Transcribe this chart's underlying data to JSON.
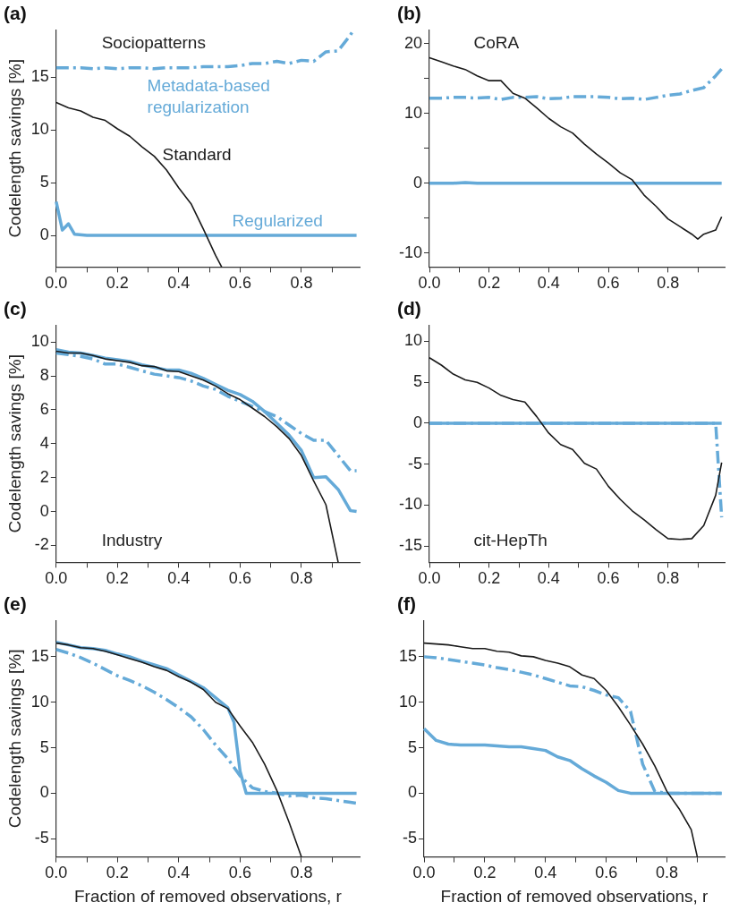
{
  "chart_data": [
    {
      "type": "line",
      "title": "(a)",
      "ylabel": "Codelength savings [%]",
      "annotations": [
        "Sociopatterns"
      ],
      "legend": false,
      "xlim": [
        0,
        0.99
      ],
      "ylim": [
        -3,
        19.5
      ],
      "xticks": [
        {
          "value": 0,
          "label": "0.0"
        },
        {
          "value": 0.1,
          "label": null
        },
        {
          "value": 0.2,
          "label": "0.2"
        },
        {
          "value": 0.3,
          "label": null
        },
        {
          "value": 0.4,
          "label": "0.4"
        },
        {
          "value": 0.5,
          "label": null
        },
        {
          "value": 0.6,
          "label": "0.6"
        },
        {
          "value": 0.7,
          "label": null
        },
        {
          "value": 0.8,
          "label": "0.8"
        },
        {
          "value": 0.9,
          "label": null
        }
      ],
      "yticks": [
        0,
        5,
        10,
        15
      ],
      "series": [
        {
          "name": "Standard",
          "color": "#1a1a1a",
          "line_style": "solid",
          "x": [
            0,
            0.04,
            0.08,
            0.12,
            0.16,
            0.2,
            0.24,
            0.28,
            0.32,
            0.36,
            0.4,
            0.44,
            0.48,
            0.52,
            0.54
          ],
          "values": [
            12.6,
            12.1,
            11.8,
            11.2,
            10.9,
            10.1,
            9.4,
            8.4,
            7.5,
            6.2,
            4.5,
            3.0,
            0.6,
            -1.9,
            -3
          ]
        },
        {
          "name": "Regularized",
          "color": "#65aad8",
          "line_style": "solid",
          "x": [
            0,
            0.02,
            0.04,
            0.06,
            0.1,
            0.98
          ],
          "values": [
            3.2,
            0.5,
            1.1,
            0.1,
            0,
            0
          ]
        },
        {
          "name": "Metadata-based regularization",
          "color": "#65aad8",
          "line_style": "dashed",
          "x": [
            0,
            0.04,
            0.08,
            0.12,
            0.16,
            0.2,
            0.24,
            0.28,
            0.32,
            0.36,
            0.4,
            0.44,
            0.48,
            0.52,
            0.56,
            0.6,
            0.64,
            0.68,
            0.72,
            0.76,
            0.8,
            0.84,
            0.88,
            0.92,
            0.96,
            0.97
          ],
          "values": [
            15.9,
            15.9,
            15.9,
            15.8,
            15.9,
            15.8,
            15.9,
            15.9,
            15.8,
            15.9,
            15.9,
            15.9,
            16.0,
            16.0,
            16.0,
            16.1,
            16.3,
            16.3,
            16.5,
            16.3,
            16.6,
            16.5,
            17.4,
            17.5,
            19.0,
            19.5
          ]
        }
      ]
    },
    {
      "type": "line",
      "title": "(b)",
      "annotations": [
        "CoRA"
      ],
      "legend": false,
      "xlim": [
        0,
        0.99
      ],
      "ylim": [
        -12,
        22
      ],
      "xticks": [
        {
          "value": 0,
          "label": "0.0"
        },
        {
          "value": 0.1,
          "label": null
        },
        {
          "value": 0.2,
          "label": "0.2"
        },
        {
          "value": 0.3,
          "label": null
        },
        {
          "value": 0.4,
          "label": "0.4"
        },
        {
          "value": 0.5,
          "label": null
        },
        {
          "value": 0.6,
          "label": "0.6"
        },
        {
          "value": 0.7,
          "label": null
        },
        {
          "value": 0.8,
          "label": "0.8"
        },
        {
          "value": 0.9,
          "label": null
        }
      ],
      "yticks": [
        -10,
        {
          "value": -5,
          "label": null
        },
        0,
        {
          "value": 5,
          "label": null
        },
        10,
        {
          "value": 15,
          "label": null
        },
        20
      ],
      "x": [
        0,
        0.04,
        0.08,
        0.12,
        0.16,
        0.2,
        0.24,
        0.28,
        0.32,
        0.36,
        0.4,
        0.44,
        0.48,
        0.52,
        0.56,
        0.6,
        0.64,
        0.68,
        0.72,
        0.76,
        0.8,
        0.84,
        0.88,
        0.92,
        0.96,
        0.98
      ],
      "series": [
        {
          "color": "#1a1a1a",
          "line_style": "solid",
          "x": [
            0,
            0.04,
            0.08,
            0.12,
            0.16,
            0.2,
            0.24,
            0.28,
            0.32,
            0.36,
            0.4,
            0.44,
            0.48,
            0.52,
            0.56,
            0.6,
            0.64,
            0.68,
            0.72,
            0.76,
            0.8,
            0.84,
            0.88,
            0.9,
            0.92,
            0.96,
            0.98
          ],
          "values": [
            18.0,
            17.4,
            16.8,
            16.3,
            15.4,
            14.7,
            14.7,
            12.9,
            12.2,
            10.8,
            9.3,
            8.1,
            7.2,
            5.6,
            4.2,
            2.9,
            1.5,
            0.5,
            -1.7,
            -3.3,
            -5.1,
            -6.2,
            -7.3,
            -8.0,
            -7.3,
            -6.7,
            -4.8
          ]
        },
        {
          "color": "#65aad8",
          "line_style": "solid",
          "values": [
            0,
            0,
            0,
            0.1,
            0,
            0,
            0,
            0,
            0,
            0,
            0,
            0,
            0,
            0,
            0,
            0,
            0,
            0,
            0,
            0,
            0,
            0,
            0,
            0,
            0,
            0
          ]
        },
        {
          "color": "#65aad8",
          "line_style": "dashed",
          "values": [
            12.2,
            12.2,
            12.3,
            12.3,
            12.2,
            12.3,
            12.0,
            12.3,
            12.3,
            12.4,
            12.1,
            12.2,
            12.4,
            12.4,
            12.4,
            12.3,
            12.1,
            12.2,
            12.0,
            12.3,
            12.6,
            12.8,
            13.3,
            13.7,
            15.4,
            16.4
          ]
        }
      ]
    },
    {
      "type": "line",
      "title": "(c)",
      "ylabel": "Codelength savings [%]",
      "annotations": [
        "Industry"
      ],
      "legend": false,
      "xlim": [
        0,
        0.99
      ],
      "ylim": [
        -3,
        11
      ],
      "xticks": [
        {
          "value": 0,
          "label": "0.0"
        },
        {
          "value": 0.1,
          "label": null
        },
        {
          "value": 0.2,
          "label": "0.2"
        },
        {
          "value": 0.3,
          "label": null
        },
        {
          "value": 0.4,
          "label": "0.4"
        },
        {
          "value": 0.5,
          "label": null
        },
        {
          "value": 0.6,
          "label": "0.6"
        },
        {
          "value": 0.7,
          "label": null
        },
        {
          "value": 0.8,
          "label": "0.8"
        },
        {
          "value": 0.9,
          "label": null
        }
      ],
      "yticks": [
        -2,
        0,
        2,
        4,
        6,
        8,
        10
      ],
      "x": [
        0,
        0.04,
        0.08,
        0.12,
        0.16,
        0.2,
        0.24,
        0.28,
        0.32,
        0.36,
        0.4,
        0.44,
        0.48,
        0.52,
        0.56,
        0.6,
        0.64,
        0.68,
        0.72,
        0.76,
        0.8,
        0.84,
        0.88,
        0.92,
        0.96,
        0.98
      ],
      "series": [
        {
          "color": "#1a1a1a",
          "line_style": "solid",
          "x": [
            0,
            0.04,
            0.08,
            0.12,
            0.16,
            0.2,
            0.24,
            0.28,
            0.32,
            0.36,
            0.4,
            0.44,
            0.48,
            0.52,
            0.56,
            0.6,
            0.64,
            0.68,
            0.72,
            0.76,
            0.8,
            0.84,
            0.88,
            0.92
          ],
          "values": [
            9.45,
            9.35,
            9.35,
            9.2,
            9.0,
            8.9,
            8.8,
            8.6,
            8.55,
            8.3,
            8.25,
            8.0,
            7.75,
            7.4,
            6.95,
            6.6,
            6.1,
            5.6,
            5.0,
            4.3,
            3.3,
            1.8,
            0.4,
            -3.0
          ]
        },
        {
          "color": "#65aad8",
          "line_style": "solid",
          "values": [
            9.55,
            9.4,
            9.35,
            9.2,
            9.05,
            8.95,
            8.85,
            8.65,
            8.5,
            8.35,
            8.35,
            8.15,
            7.85,
            7.5,
            7.15,
            6.9,
            6.5,
            5.9,
            5.2,
            4.5,
            3.6,
            2.0,
            2.05,
            1.3,
            0.05,
            0.0
          ]
        },
        {
          "color": "#65aad8",
          "line_style": "dashed",
          "values": [
            9.35,
            9.25,
            9.15,
            9.0,
            8.7,
            8.7,
            8.5,
            8.3,
            8.1,
            8.0,
            7.9,
            7.7,
            7.4,
            7.2,
            6.8,
            6.5,
            6.2,
            5.9,
            5.6,
            5.1,
            4.6,
            4.2,
            4.2,
            3.3,
            2.4,
            2.4
          ]
        }
      ]
    },
    {
      "type": "line",
      "title": "(d)",
      "annotations": [
        "cit-HepTh"
      ],
      "legend": false,
      "xlim": [
        0,
        0.99
      ],
      "ylim": [
        -17,
        12
      ],
      "xticks": [
        {
          "value": 0,
          "label": "0.0"
        },
        {
          "value": 0.1,
          "label": null
        },
        {
          "value": 0.2,
          "label": "0.2"
        },
        {
          "value": 0.3,
          "label": null
        },
        {
          "value": 0.4,
          "label": "0.4"
        },
        {
          "value": 0.5,
          "label": null
        },
        {
          "value": 0.6,
          "label": "0.6"
        },
        {
          "value": 0.7,
          "label": null
        },
        {
          "value": 0.8,
          "label": "0.8"
        },
        {
          "value": 0.9,
          "label": null
        }
      ],
      "yticks": [
        -15,
        -10,
        -5,
        0,
        5,
        10
      ],
      "x": [
        0,
        0.04,
        0.08,
        0.12,
        0.16,
        0.2,
        0.24,
        0.28,
        0.32,
        0.36,
        0.4,
        0.44,
        0.48,
        0.52,
        0.56,
        0.6,
        0.64,
        0.68,
        0.72,
        0.76,
        0.8,
        0.84,
        0.88,
        0.92,
        0.96,
        0.98
      ],
      "series": [
        {
          "color": "#1a1a1a",
          "line_style": "solid",
          "values": [
            8.0,
            7.1,
            6.0,
            5.3,
            5.0,
            4.3,
            3.4,
            2.9,
            2.6,
            0.8,
            -1.2,
            -2.6,
            -3.2,
            -4.9,
            -5.6,
            -7.7,
            -9.3,
            -10.7,
            -11.8,
            -13.0,
            -14.1,
            -14.2,
            -14.1,
            -12.5,
            -8.8,
            -4.8
          ]
        },
        {
          "color": "#65aad8",
          "line_style": "solid",
          "values": [
            0,
            0,
            0,
            0,
            0,
            0,
            0,
            0,
            0,
            0,
            0,
            0,
            0,
            0,
            0,
            0,
            0,
            0,
            0,
            0,
            0,
            0,
            0,
            0,
            0,
            0
          ]
        },
        {
          "color": "#65aad8",
          "line_style": "dashed",
          "values": [
            0,
            0,
            0,
            0,
            0,
            0,
            0,
            0,
            0,
            0,
            0,
            0,
            0,
            0,
            0,
            0,
            0,
            0,
            0,
            0,
            0,
            0,
            0,
            0,
            0,
            -11.5
          ]
        }
      ]
    },
    {
      "type": "line",
      "title": "(e)",
      "xlabel": "Fraction of removed observations, r",
      "ylabel": "Codelength savings [%]",
      "legend": false,
      "xlim": [
        0,
        0.99
      ],
      "ylim": [
        -7,
        19
      ],
      "xticks": [
        {
          "value": 0,
          "label": "0.0"
        },
        {
          "value": 0.1,
          "label": null
        },
        {
          "value": 0.2,
          "label": "0.2"
        },
        {
          "value": 0.3,
          "label": null
        },
        {
          "value": 0.4,
          "label": "0.4"
        },
        {
          "value": 0.5,
          "label": null
        },
        {
          "value": 0.6,
          "label": "0.6"
        },
        {
          "value": 0.7,
          "label": null
        },
        {
          "value": 0.8,
          "label": "0.8"
        },
        {
          "value": 0.9,
          "label": null
        }
      ],
      "yticks": [
        -5,
        0,
        5,
        10,
        15
      ],
      "x": [
        0,
        0.04,
        0.08,
        0.12,
        0.16,
        0.2,
        0.24,
        0.28,
        0.32,
        0.36,
        0.4,
        0.44,
        0.48,
        0.52,
        0.56,
        0.6,
        0.64,
        0.68,
        0.72,
        0.76,
        0.8,
        0.84,
        0.88,
        0.92,
        0.96,
        0.98
      ],
      "series": [
        {
          "color": "#1a1a1a",
          "line_style": "solid",
          "x": [
            0,
            0.04,
            0.08,
            0.12,
            0.16,
            0.2,
            0.24,
            0.28,
            0.32,
            0.36,
            0.4,
            0.44,
            0.48,
            0.52,
            0.56,
            0.6,
            0.64,
            0.68,
            0.72,
            0.76,
            0.8
          ],
          "values": [
            16.5,
            16.3,
            16.0,
            15.9,
            15.6,
            15.2,
            14.8,
            14.4,
            13.9,
            13.5,
            12.8,
            12.2,
            11.4,
            10.0,
            9.3,
            7.4,
            5.6,
            3.2,
            0.3,
            -3.2,
            -7
          ]
        },
        {
          "color": "#65aad8",
          "line_style": "solid",
          "x": [
            0,
            0.04,
            0.08,
            0.12,
            0.16,
            0.2,
            0.24,
            0.28,
            0.32,
            0.36,
            0.4,
            0.44,
            0.48,
            0.52,
            0.56,
            0.58,
            0.6,
            0.62,
            0.98
          ],
          "values": [
            16.6,
            16.3,
            16.0,
            15.9,
            15.7,
            15.3,
            15.0,
            14.5,
            14.1,
            13.7,
            13.0,
            12.3,
            11.6,
            10.5,
            9.4,
            7.8,
            2.4,
            0,
            0
          ]
        },
        {
          "color": "#65aad8",
          "line_style": "dashed",
          "values": [
            15.8,
            15.4,
            14.9,
            14.3,
            13.6,
            12.9,
            12.4,
            11.8,
            11.1,
            10.3,
            9.4,
            8.4,
            7.0,
            5.3,
            3.8,
            1.9,
            0.6,
            0.2,
            0.0,
            -0.3,
            -0.2,
            -0.5,
            -0.6,
            -0.8,
            -1.0,
            -1.1
          ]
        }
      ]
    },
    {
      "type": "line",
      "title": "(f)",
      "xlabel": "Fraction of removed observations, r",
      "legend": false,
      "xlim": [
        0,
        0.99
      ],
      "ylim": [
        -7,
        19
      ],
      "xticks": [
        {
          "value": 0,
          "label": "0.0"
        },
        {
          "value": 0.1,
          "label": null
        },
        {
          "value": 0.2,
          "label": "0.2"
        },
        {
          "value": 0.3,
          "label": null
        },
        {
          "value": 0.4,
          "label": "0.4"
        },
        {
          "value": 0.5,
          "label": null
        },
        {
          "value": 0.6,
          "label": "0.6"
        },
        {
          "value": 0.7,
          "label": null
        },
        {
          "value": 0.8,
          "label": "0.8"
        },
        {
          "value": 0.9,
          "label": null
        }
      ],
      "yticks": [
        -5,
        0,
        5,
        10,
        15
      ],
      "x": [
        0,
        0.04,
        0.08,
        0.12,
        0.16,
        0.2,
        0.24,
        0.28,
        0.32,
        0.36,
        0.4,
        0.44,
        0.48,
        0.52,
        0.56,
        0.6,
        0.64,
        0.68,
        0.72,
        0.76,
        0.8,
        0.84,
        0.88,
        0.92,
        0.96,
        0.98
      ],
      "series": [
        {
          "color": "#1a1a1a",
          "line_style": "solid",
          "x": [
            0,
            0.04,
            0.08,
            0.12,
            0.16,
            0.2,
            0.24,
            0.28,
            0.32,
            0.36,
            0.4,
            0.44,
            0.48,
            0.52,
            0.56,
            0.6,
            0.64,
            0.68,
            0.72,
            0.76,
            0.8,
            0.84,
            0.88,
            0.9
          ],
          "values": [
            16.5,
            16.4,
            16.3,
            16.1,
            15.9,
            15.9,
            15.6,
            15.5,
            15.1,
            15.0,
            14.6,
            14.3,
            13.9,
            13.0,
            12.6,
            11.3,
            9.5,
            7.5,
            5.4,
            3.0,
            0.2,
            -1.7,
            -4.0,
            -7
          ]
        },
        {
          "color": "#65aad8",
          "line_style": "solid",
          "values": [
            7.1,
            5.8,
            5.4,
            5.3,
            5.3,
            5.3,
            5.2,
            5.1,
            5.1,
            4.9,
            4.7,
            4.0,
            3.6,
            2.7,
            1.9,
            1.2,
            0.3,
            0,
            0,
            0,
            0,
            0,
            0,
            0,
            0,
            0
          ]
        },
        {
          "color": "#65aad8",
          "line_style": "dashed",
          "values": [
            15.0,
            14.9,
            14.7,
            14.5,
            14.3,
            14.1,
            13.8,
            13.6,
            13.3,
            13.0,
            12.6,
            12.2,
            11.8,
            11.7,
            11.3,
            10.8,
            10.5,
            9.0,
            3.2,
            0.2,
            0,
            0,
            0,
            0,
            0,
            0
          ]
        }
      ]
    }
  ]
}
